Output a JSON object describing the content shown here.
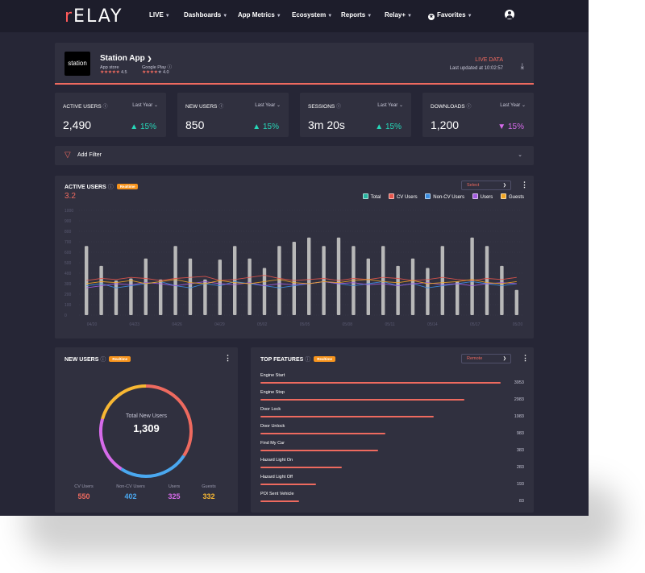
{
  "nav": {
    "logo_prefix": "r",
    "logo_rest": "ELAY",
    "items": [
      "LIVE",
      "Dashboards",
      "App Metrics",
      "Ecosystem",
      "Reports",
      "Relay+"
    ],
    "favorites": "Favorites"
  },
  "app_header": {
    "logo_text": "station",
    "app_name": "Station App",
    "app_store": {
      "label": "App store",
      "rating": "4.5"
    },
    "google_play": {
      "label": "Google Play",
      "rating": "4.0"
    },
    "live": "LIVE DATA",
    "updated": "Last updated at 10:02:57"
  },
  "kpis": [
    {
      "label": "ACTIVE USERS",
      "period": "Last Year",
      "value": "2,490",
      "delta": "15%",
      "direction": "up"
    },
    {
      "label": "NEW USERS",
      "period": "Last Year",
      "value": "850",
      "delta": "15%",
      "direction": "up"
    },
    {
      "label": "SESSIONS",
      "period": "Last Year",
      "value": "3m 20s",
      "delta": "15%",
      "direction": "up"
    },
    {
      "label": "DOWNLOADS",
      "period": "Last Year",
      "value": "1,200",
      "delta": "15%",
      "direction": "down"
    }
  ],
  "filter": {
    "label": "Add Filter"
  },
  "active_users_chart": {
    "title": "ACTIVE USERS",
    "badge": "Realtime",
    "big_value": "3.2",
    "select": "Select",
    "legend": [
      {
        "name": "Total",
        "color": "#26b5a0"
      },
      {
        "name": "CV Users",
        "color": "#e8564c"
      },
      {
        "name": "Non-CV Users",
        "color": "#3b8de0"
      },
      {
        "name": "Users",
        "color": "#a35be0"
      },
      {
        "name": "Guests",
        "color": "#f2a623"
      }
    ]
  },
  "new_users": {
    "title": "NEW USERS",
    "badge": "Realtime",
    "center_label": "Total New Users",
    "center_value": "1,309",
    "stats": [
      {
        "label": "CV Users",
        "value": "550",
        "color": "#ee6a5f"
      },
      {
        "label": "Non-CV Users",
        "value": "402",
        "color": "#4aa8f0"
      },
      {
        "label": "Users",
        "value": "325",
        "color": "#d66bea"
      },
      {
        "label": "Guests",
        "value": "332",
        "color": "#f7b733"
      }
    ]
  },
  "top_features": {
    "title": "TOP FEATURES",
    "badge": "Realtime",
    "select": "Remote",
    "items": [
      {
        "label": "Engine Start",
        "value": "3953",
        "fraction": 1.0
      },
      {
        "label": "Engine Stop",
        "value": "2983",
        "fraction": 0.85
      },
      {
        "label": "Door Lock",
        "value": "1983",
        "fraction": 0.72
      },
      {
        "label": "Door Unlock",
        "value": "983",
        "fraction": 0.52
      },
      {
        "label": "Find My Car",
        "value": "383",
        "fraction": 0.49
      },
      {
        "label": "Hazard Light On",
        "value": "283",
        "fraction": 0.34
      },
      {
        "label": "Hazard Light Off",
        "value": "193",
        "fraction": 0.23
      },
      {
        "label": "POI Sent Vehicle",
        "value": "83",
        "fraction": 0.16
      }
    ]
  },
  "chart_data": {
    "type": "bar",
    "ylim": [
      0,
      1000
    ],
    "yticks": [
      "1000",
      "900",
      "800",
      "700",
      "600",
      "500",
      "400",
      "300",
      "200",
      "100",
      "0"
    ],
    "x_tick_labels": [
      "04/20",
      "04/23",
      "04/26",
      "04/29",
      "05/02",
      "05/05",
      "05/08",
      "05/11",
      "05/14",
      "05/17",
      "05/20"
    ],
    "bars": [
      660,
      470,
      330,
      350,
      540,
      340,
      660,
      540,
      340,
      530,
      660,
      540,
      450,
      660,
      700,
      740,
      660,
      740,
      660,
      540,
      660,
      470,
      540,
      450,
      660,
      320,
      740,
      660,
      470,
      240
    ],
    "series": [
      {
        "name": "CV Users",
        "color": "#e8564c",
        "values": [
          330,
          350,
          340,
          360,
          350,
          330,
          350,
          360,
          370,
          330,
          340,
          360,
          380,
          350,
          330,
          340,
          350,
          330,
          350,
          340,
          360,
          350,
          330,
          340,
          360,
          340,
          330,
          350,
          340,
          360
        ]
      },
      {
        "name": "Non-CV Users",
        "color": "#3b8de0",
        "values": [
          280,
          300,
          260,
          280,
          300,
          320,
          280,
          260,
          300,
          280,
          320,
          300,
          280,
          260,
          280,
          300,
          320,
          300,
          280,
          300,
          320,
          280,
          300,
          260,
          280,
          300,
          320,
          300,
          280,
          300
        ]
      },
      {
        "name": "Users",
        "color": "#a35be0",
        "values": [
          260,
          280,
          300,
          290,
          310,
          300,
          280,
          300,
          320,
          300,
          290,
          310,
          280,
          300,
          290,
          300,
          320,
          300,
          310,
          290,
          300,
          280,
          300,
          310,
          290,
          300,
          280,
          300,
          310,
          300
        ]
      },
      {
        "name": "Guests",
        "color": "#f2a623",
        "values": [
          300,
          320,
          310,
          330,
          300,
          320,
          340,
          310,
          300,
          330,
          310,
          300,
          320,
          340,
          310,
          300,
          320,
          310,
          330,
          340,
          320,
          310,
          330,
          300,
          310,
          320,
          340,
          310,
          300,
          320
        ]
      }
    ]
  }
}
